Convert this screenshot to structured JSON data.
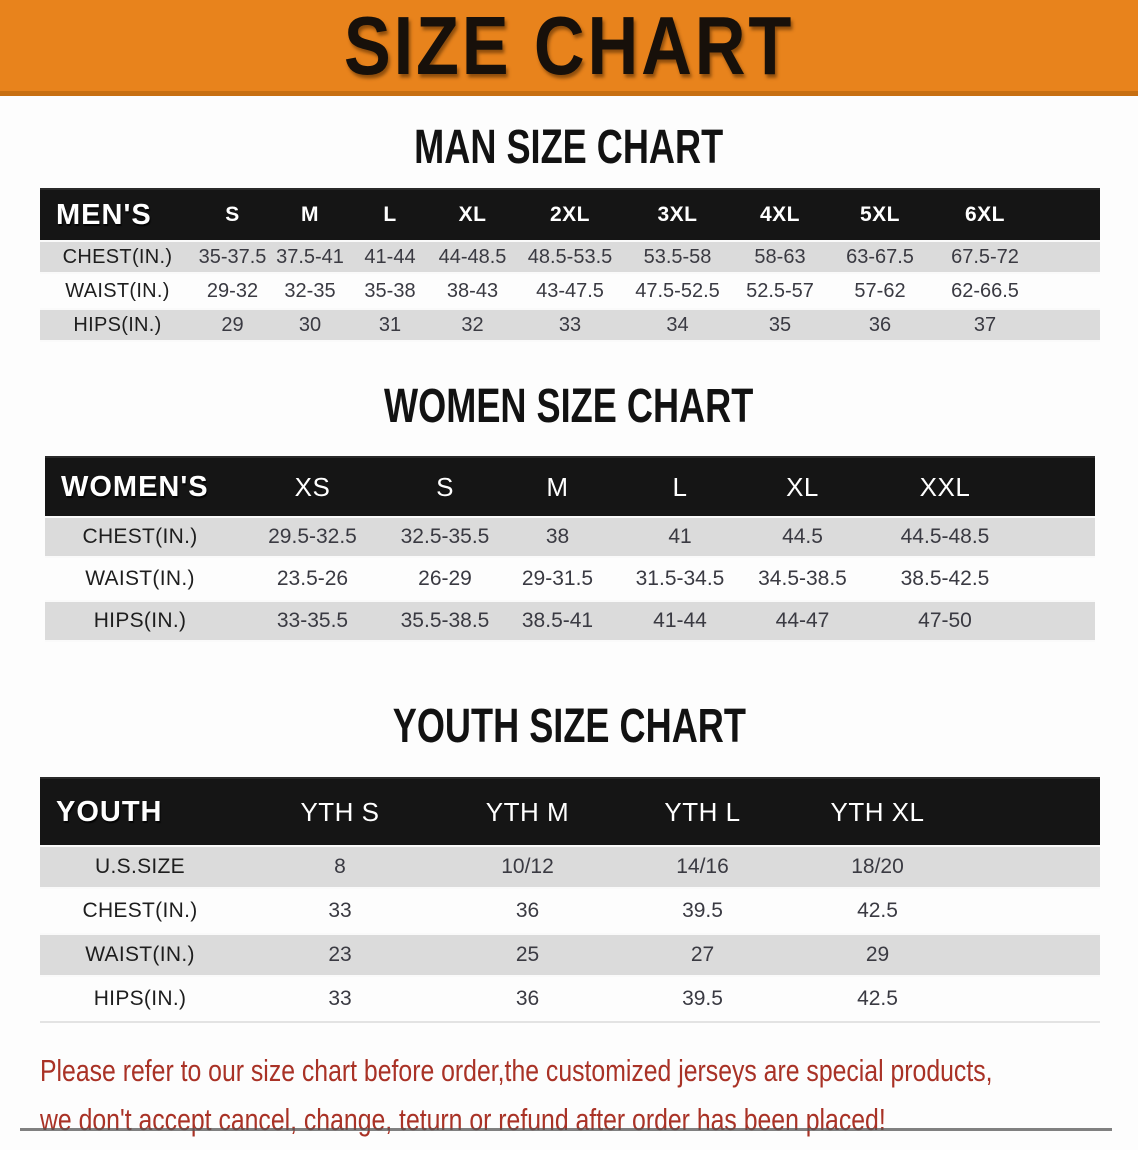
{
  "banner": {
    "title": "SIZE CHART"
  },
  "colors": {
    "banner_bg": "#E8831C",
    "banner_edge": "#C76F12",
    "header_band": "#151515",
    "row_gray": "#DBDBDB",
    "footer_red": "#A93226"
  },
  "sections": {
    "men": {
      "heading": "MAN SIZE CHART",
      "group_label": "MEN'S",
      "sizes": [
        "S",
        "M",
        "L",
        "XL",
        "2XL",
        "3XL",
        "4XL",
        "5XL",
        "6XL"
      ],
      "rows": [
        {
          "label": "CHEST(IN.)",
          "values": [
            "35-37.5",
            "37.5-41",
            "41-44",
            "44-48.5",
            "48.5-53.5",
            "53.5-58",
            "58-63",
            "63-67.5",
            "67.5-72"
          ]
        },
        {
          "label": "WAIST(IN.)",
          "values": [
            "29-32",
            "32-35",
            "35-38",
            "38-43",
            "43-47.5",
            "47.5-52.5",
            "52.5-57",
            "57-62",
            "62-66.5"
          ]
        },
        {
          "label": "HIPS(IN.)",
          "values": [
            "29",
            "30",
            "31",
            "32",
            "33",
            "34",
            "35",
            "36",
            "37"
          ]
        }
      ]
    },
    "women": {
      "heading": "WOMEN SIZE CHART",
      "group_label": "WOMEN'S",
      "sizes": [
        "XS",
        "S",
        "M",
        "L",
        "XL",
        "XXL"
      ],
      "rows": [
        {
          "label": "CHEST(IN.)",
          "values": [
            "29.5-32.5",
            "32.5-35.5",
            "38",
            "41",
            "44.5",
            "44.5-48.5"
          ]
        },
        {
          "label": "WAIST(IN.)",
          "values": [
            "23.5-26",
            "26-29",
            "29-31.5",
            "31.5-34.5",
            "34.5-38.5",
            "38.5-42.5"
          ]
        },
        {
          "label": "HIPS(IN.)",
          "values": [
            "33-35.5",
            "35.5-38.5",
            "38.5-41",
            "41-44",
            "44-47",
            "47-50"
          ]
        }
      ]
    },
    "youth": {
      "heading": "YOUTH SIZE CHART",
      "group_label": "YOUTH",
      "sizes": [
        "YTH S",
        "YTH M",
        "YTH L",
        "YTH XL"
      ],
      "rows": [
        {
          "label": "U.S.SIZE",
          "values": [
            "8",
            "10/12",
            "14/16",
            "18/20"
          ]
        },
        {
          "label": "CHEST(IN.)",
          "values": [
            "33",
            "36",
            "39.5",
            "42.5"
          ]
        },
        {
          "label": "WAIST(IN.)",
          "values": [
            "23",
            "25",
            "27",
            "29"
          ]
        },
        {
          "label": "HIPS(IN.)",
          "values": [
            "33",
            "36",
            "39.5",
            "42.5"
          ]
        }
      ]
    }
  },
  "footer": {
    "line1": "Please refer to our size chart before order,the customized jerseys are special products,",
    "line2": "we don't accept cancel, change, teturn or refund after order has been placed!"
  }
}
